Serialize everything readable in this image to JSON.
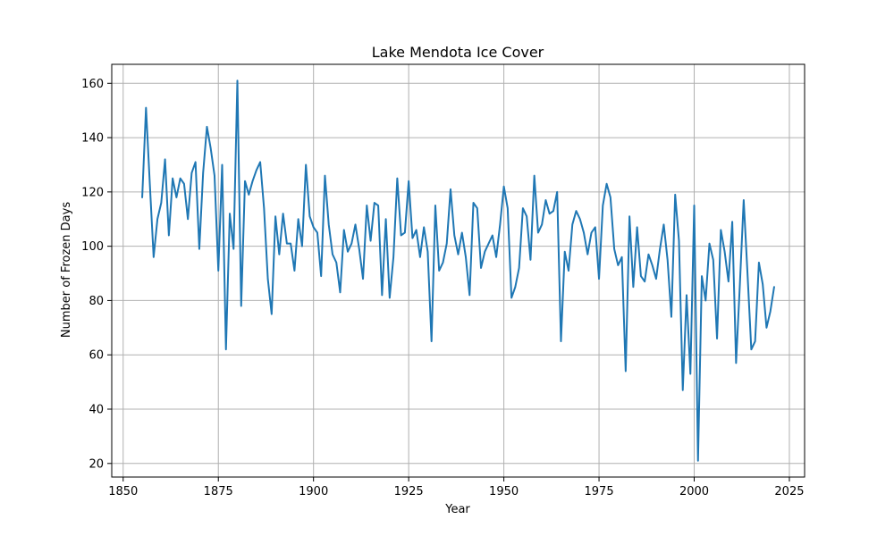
{
  "chart_data": {
    "type": "line",
    "title": "Lake Mendota Ice Cover",
    "xlabel": "Year",
    "ylabel": "Number of Frozen Days",
    "xlim": [
      1847,
      2029
    ],
    "ylim": [
      15,
      167
    ],
    "xticks": [
      1850,
      1875,
      1900,
      1925,
      1950,
      1975,
      2000,
      2025
    ],
    "yticks": [
      20,
      40,
      60,
      80,
      100,
      120,
      140,
      160
    ],
    "grid": true,
    "line_color": "#1f77b4",
    "series": [
      {
        "x": [
          1855,
          1856,
          1857,
          1858,
          1859,
          1860,
          1861,
          1862,
          1863,
          1864,
          1865,
          1866,
          1867,
          1868,
          1869,
          1870,
          1871,
          1872,
          1873,
          1874,
          1875,
          1876,
          1877,
          1878,
          1879,
          1880,
          1881,
          1882,
          1883,
          1884,
          1885,
          1886,
          1887,
          1888,
          1889,
          1890,
          1891,
          1892,
          1893,
          1894,
          1895,
          1896,
          1897,
          1898,
          1899,
          1900,
          1901,
          1902,
          1903,
          1904,
          1905,
          1906,
          1907,
          1908,
          1909,
          1910,
          1911,
          1912,
          1913,
          1914,
          1915,
          1916,
          1917,
          1918,
          1919,
          1920,
          1921,
          1922,
          1923,
          1924,
          1925,
          1926,
          1927,
          1928,
          1929,
          1930,
          1931,
          1932,
          1933,
          1934,
          1935,
          1936,
          1937,
          1938,
          1939,
          1940,
          1941,
          1942,
          1943,
          1944,
          1945,
          1946,
          1947,
          1948,
          1949,
          1950,
          1951,
          1952,
          1953,
          1954,
          1955,
          1956,
          1957,
          1958,
          1959,
          1960,
          1961,
          1962,
          1963,
          1964,
          1965,
          1966,
          1967,
          1968,
          1969,
          1970,
          1971,
          1972,
          1973,
          1974,
          1975,
          1976,
          1977,
          1978,
          1979,
          1980,
          1981,
          1982,
          1983,
          1984,
          1985,
          1986,
          1987,
          1988,
          1989,
          1990,
          1991,
          1992,
          1993,
          1994,
          1995,
          1996,
          1997,
          1998,
          1999,
          2000,
          2001,
          2002,
          2003,
          2004,
          2005,
          2006,
          2007,
          2008,
          2009,
          2010,
          2011,
          2012,
          2013,
          2014,
          2015,
          2016,
          2017,
          2018,
          2019,
          2020,
          2021
        ],
        "values": [
          118,
          151,
          123,
          96,
          110,
          116,
          132,
          104,
          125,
          118,
          125,
          123,
          110,
          127,
          131,
          99,
          127,
          144,
          136,
          126,
          91,
          130,
          62,
          112,
          99,
          161,
          78,
          124,
          119,
          124,
          128,
          131,
          114,
          88,
          75,
          111,
          97,
          112,
          101,
          101,
          91,
          110,
          100,
          130,
          111,
          107,
          105,
          89,
          126,
          108,
          97,
          94,
          83,
          106,
          98,
          101,
          108,
          99,
          88,
          115,
          102,
          116,
          115,
          82,
          110,
          81,
          96,
          125,
          104,
          105,
          124,
          103,
          106,
          96,
          107,
          98,
          65,
          115,
          91,
          94,
          101,
          121,
          104,
          97,
          105,
          96,
          82,
          116,
          114,
          92,
          98,
          101,
          104,
          96,
          108,
          122,
          114,
          81,
          85,
          92,
          114,
          111,
          95,
          126,
          105,
          108,
          117,
          112,
          113,
          120,
          65,
          98,
          91,
          108,
          113,
          110,
          105,
          97,
          105,
          107,
          88,
          115,
          123,
          118,
          99,
          93,
          96,
          54,
          111,
          85,
          107,
          89,
          87,
          97,
          93,
          88,
          99,
          108,
          95,
          74,
          119,
          102,
          47,
          82,
          53,
          115,
          21,
          89,
          80,
          101,
          95,
          66,
          106,
          98,
          87,
          109,
          57,
          86,
          117,
          90,
          62,
          65,
          94,
          86,
          70,
          76,
          85
        ]
      }
    ]
  }
}
